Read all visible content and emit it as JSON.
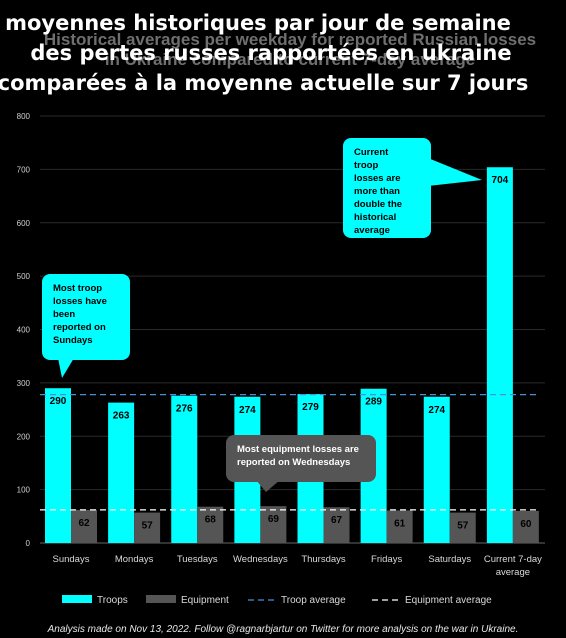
{
  "overlay_title": {
    "line1": "moyennes historiques par jour de semaine",
    "line2": "des pertes russes rapportées en ukraine",
    "line3": "comparées à la moyenne actuelle sur 7 jours"
  },
  "footer": "Analysis made on Nov 13, 2022. Follow @ragnarbjartur on Twitter for more analysis on the war in Ukraine.",
  "colors": {
    "troops": "#00ffff",
    "equipment": "#555555",
    "background": "#000000"
  },
  "chart_data": {
    "type": "bar",
    "title": "Historical averages per weekday for reported Russian losses in Ukraine compared to current 7-day average",
    "categories": [
      "Sundays",
      "Mondays",
      "Tuesdays",
      "Wednesdays",
      "Thursdays",
      "Fridays",
      "Saturdays",
      "Current 7-day average"
    ],
    "series": [
      {
        "name": "Troops",
        "values": [
          290,
          263,
          276,
          274,
          279,
          289,
          274,
          704
        ]
      },
      {
        "name": "Equipment",
        "values": [
          62,
          57,
          68,
          69,
          67,
          61,
          57,
          60
        ]
      }
    ],
    "reference_lines": [
      {
        "name": "Troop average",
        "value": 278,
        "style": "dashed"
      },
      {
        "name": "Equipment average",
        "value": 62,
        "style": "dashed"
      }
    ],
    "ylim": [
      0,
      800
    ],
    "yticks": [
      0,
      100,
      200,
      300,
      400,
      500,
      600,
      700,
      800
    ],
    "grid": true,
    "legend_position": "bottom",
    "annotations": [
      {
        "text": "Most troop losses have been reported on Sundays",
        "points_to": "Sundays"
      },
      {
        "text": "Current troop losses are more than double the historical average",
        "points_to": "Current 7-day average"
      },
      {
        "text": "Most equipment losses are reported on Wednesdays",
        "points_to": "Wednesdays"
      }
    ]
  }
}
